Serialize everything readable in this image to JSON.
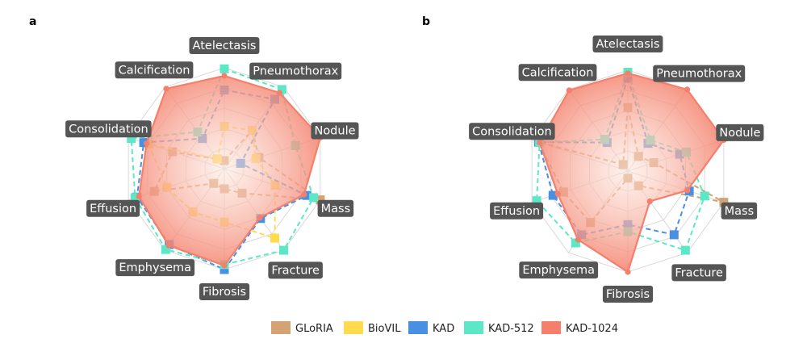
{
  "chart_data": [
    {
      "type": "radar",
      "panel": "a",
      "axes": [
        "Atelectasis",
        "Pneumothorax",
        "Nodule",
        "Mass",
        "Fracture",
        "Fibrosis",
        "Emphysema",
        "Effusion",
        "Consolidation",
        "Calcification"
      ],
      "rlim": [
        0,
        1
      ],
      "grid": true,
      "series": [
        {
          "name": "GLoRIA",
          "values": [
            0.08,
            0.47,
            0.36,
            1.0,
            0.3,
            0.2,
            0.18,
            0.73,
            0.54,
            0.12
          ]
        },
        {
          "name": "BioVIL",
          "values": [
            0.42,
            0.47,
            0.33,
            0.53,
            0.85,
            0.53,
            0.53,
            0.6,
            0.79,
            0.12
          ]
        },
        {
          "name": "KAD",
          "values": [
            0.78,
            0.85,
            0.17,
            0.86,
            0.61,
            1.0,
            0.93,
            0.91,
            0.84,
            0.37
          ]
        },
        {
          "name": "KAD-512",
          "values": [
            0.99,
            0.97,
            0.74,
            0.93,
            1.0,
            0.95,
            0.99,
            0.93,
            0.97,
            0.45
          ]
        },
        {
          "name": "KAD-1024",
          "values": [
            0.92,
            0.93,
            1.0,
            0.83,
            0.6,
            0.96,
            0.94,
            0.89,
            0.81,
            0.98
          ]
        }
      ]
    },
    {
      "type": "radar",
      "panel": "b",
      "axes": [
        "Atelectasis",
        "Pneumothorax",
        "Nodule",
        "Mass",
        "Fracture",
        "Fibrosis",
        "Emphysema",
        "Effusion",
        "Consolidation",
        "Calcification"
      ],
      "rlim": [
        0,
        1
      ],
      "grid": true,
      "series": [
        {
          "name": "GLoRIA",
          "values": [
            0.63,
            0.18,
            0.27,
            1.0,
            0.18,
            0.07,
            0.63,
            0.67,
            0.93,
            0.08
          ]
        },
        {
          "name": "BioVIL",
          "values": [
            0.0,
            0.0,
            0.0,
            0.0,
            0.0,
            0.0,
            0.0,
            0.0,
            0.0,
            0.0
          ]
        },
        {
          "name": "KAD",
          "values": [
            0.92,
            0.34,
            0.54,
            0.64,
            0.78,
            0.53,
            0.78,
            0.78,
            0.93,
            0.35
          ]
        },
        {
          "name": "KAD-512",
          "values": [
            0.98,
            0.38,
            0.61,
            0.8,
            0.97,
            0.6,
            0.88,
            0.95,
            0.92,
            0.39
          ]
        },
        {
          "name": "KAD-1024",
          "values": [
            0.97,
            1.0,
            1.0,
            0.62,
            0.37,
            1.0,
            0.84,
            0.73,
            0.92,
            0.99
          ]
        }
      ]
    }
  ],
  "legend": {
    "placement": "bottom-center",
    "items": [
      {
        "label": "GLoRIA",
        "color": "#d4a373"
      },
      {
        "label": "BioVIL",
        "color": "#ffdb4d"
      },
      {
        "label": "KAD",
        "color": "#4a90e2"
      },
      {
        "label": "KAD-512",
        "color": "#5ce8c6"
      },
      {
        "label": "KAD-1024",
        "color": "#f4806c"
      }
    ]
  },
  "colors": {
    "label_bg": "#555555",
    "grid": "#d9d9d9",
    "fill_gradient": [
      "#fbe3d8",
      "#f4806c"
    ]
  }
}
